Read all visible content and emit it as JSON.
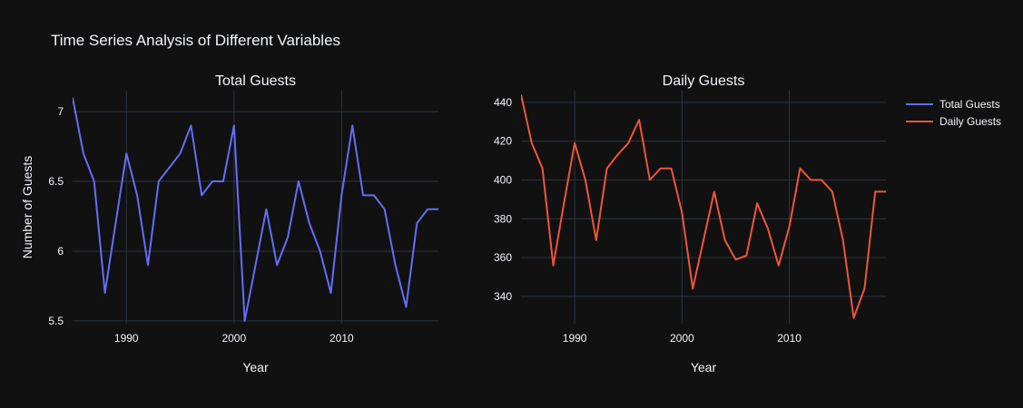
{
  "title": "Time Series Analysis of Different Variables",
  "colors": {
    "background": "#111111",
    "grid": "#283442",
    "text": "#f2f5fa"
  },
  "legend": {
    "position": "top-right",
    "items": [
      {
        "label": "Total Guests",
        "color": "#636efa"
      },
      {
        "label": "Daily Guests",
        "color": "#ef553b"
      }
    ]
  },
  "chart_data": [
    {
      "type": "line",
      "title": "Total Guests",
      "xlabel": "Year",
      "ylabel": "Number of Guests",
      "xlim": [
        1985,
        2019
      ],
      "ylim": [
        5.48,
        7.15
      ],
      "x_ticks": [
        1990,
        2000,
        2010
      ],
      "y_ticks": [
        5.5,
        6,
        6.5,
        7
      ],
      "y_tick_labels": [
        "5.5",
        "6",
        "6.5",
        "7"
      ],
      "grid": true,
      "series": [
        {
          "name": "Total Guests",
          "color": "#636efa",
          "x": [
            1985,
            1986,
            1987,
            1988,
            1989,
            1990,
            1991,
            1992,
            1993,
            1994,
            1995,
            1996,
            1997,
            1998,
            1999,
            2000,
            2001,
            2002,
            2003,
            2004,
            2005,
            2006,
            2007,
            2008,
            2009,
            2010,
            2011,
            2012,
            2013,
            2014,
            2015,
            2016,
            2017,
            2018,
            2019
          ],
          "y": [
            7.1,
            6.7,
            6.5,
            5.7,
            6.2,
            6.7,
            6.4,
            5.9,
            6.5,
            6.6,
            6.7,
            6.9,
            6.4,
            6.5,
            6.5,
            6.9,
            5.5,
            5.9,
            6.3,
            5.9,
            6.1,
            6.5,
            6.2,
            6.0,
            5.7,
            6.4,
            6.9,
            6.4,
            6.4,
            6.3,
            5.9,
            5.6,
            6.2,
            6.3,
            6.3
          ]
        }
      ]
    },
    {
      "type": "line",
      "title": "Daily Guests",
      "xlabel": "Year",
      "ylabel": "",
      "xlim": [
        1985,
        2019
      ],
      "ylim": [
        326,
        446
      ],
      "x_ticks": [
        1990,
        2000,
        2010
      ],
      "y_ticks": [
        340,
        360,
        380,
        400,
        420,
        440
      ],
      "y_tick_labels": [
        "340",
        "360",
        "380",
        "400",
        "420",
        "440"
      ],
      "grid": true,
      "series": [
        {
          "name": "Daily Guests",
          "color": "#ef553b",
          "x": [
            1985,
            1986,
            1987,
            1988,
            1989,
            1990,
            1991,
            1992,
            1993,
            1994,
            1995,
            1996,
            1997,
            1998,
            1999,
            2000,
            2001,
            2002,
            2003,
            2004,
            2005,
            2006,
            2007,
            2008,
            2009,
            2010,
            2011,
            2012,
            2013,
            2014,
            2015,
            2016,
            2017,
            2018,
            2019
          ],
          "y": [
            444,
            419,
            406,
            356,
            388,
            419,
            400,
            369,
            406,
            413,
            419,
            431,
            400,
            406,
            406,
            383,
            344,
            369,
            394,
            369,
            359,
            361,
            388,
            375,
            356,
            376,
            406,
            400,
            400,
            394,
            369,
            329,
            344,
            394,
            394
          ]
        }
      ]
    }
  ]
}
